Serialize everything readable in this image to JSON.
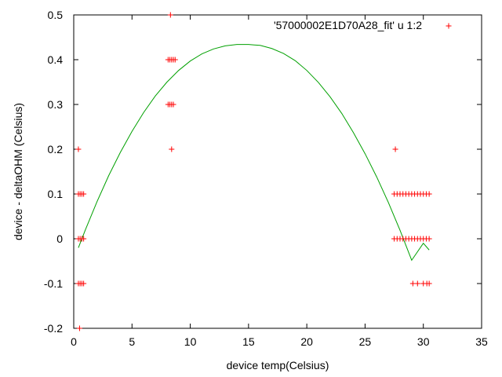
{
  "chart_data": {
    "type": "scatter",
    "title": "",
    "xlabel": "device temp(Celsius)",
    "ylabel": "device - deltaOHM (Celsius)",
    "xlim": [
      0,
      35
    ],
    "ylim": [
      -0.2,
      0.5
    ],
    "x_ticks": [
      0,
      5,
      10,
      15,
      20,
      25,
      30,
      35
    ],
    "y_ticks": [
      -0.2,
      -0.1,
      0,
      0.1,
      0.2,
      0.3,
      0.4,
      0.5
    ],
    "x_tick_labels": [
      "0",
      "5",
      "10",
      "15",
      "20",
      "25",
      "30",
      "35"
    ],
    "y_tick_labels": [
      "-0.2",
      "-0.1",
      "0",
      "0.1",
      "0.2",
      "0.3",
      "0.4",
      "0.5"
    ],
    "grid": false,
    "legend_position": "top-right",
    "series": [
      {
        "name": "'57000002E1D70A28_fit' u 1:2",
        "kind": "points",
        "marker": "plus",
        "color": "#ff0000",
        "points": [
          {
            "x": 0.4,
            "y": 0.2
          },
          {
            "x": 0.4,
            "y": 0.1
          },
          {
            "x": 0.55,
            "y": 0.1
          },
          {
            "x": 0.7,
            "y": 0.1
          },
          {
            "x": 0.85,
            "y": 0.1
          },
          {
            "x": 0.4,
            "y": 0.0
          },
          {
            "x": 0.55,
            "y": 0.0
          },
          {
            "x": 0.7,
            "y": 0.0
          },
          {
            "x": 0.85,
            "y": 0.0
          },
          {
            "x": 0.4,
            "y": -0.1
          },
          {
            "x": 0.55,
            "y": -0.1
          },
          {
            "x": 0.7,
            "y": -0.1
          },
          {
            "x": 0.85,
            "y": -0.1
          },
          {
            "x": 0.5,
            "y": -0.2
          },
          {
            "x": 8.3,
            "y": 0.5
          },
          {
            "x": 8.1,
            "y": 0.4
          },
          {
            "x": 8.25,
            "y": 0.4
          },
          {
            "x": 8.4,
            "y": 0.4
          },
          {
            "x": 8.55,
            "y": 0.4
          },
          {
            "x": 8.7,
            "y": 0.4
          },
          {
            "x": 8.1,
            "y": 0.3
          },
          {
            "x": 8.25,
            "y": 0.3
          },
          {
            "x": 8.4,
            "y": 0.3
          },
          {
            "x": 8.55,
            "y": 0.3
          },
          {
            "x": 8.4,
            "y": 0.2
          },
          {
            "x": 27.6,
            "y": 0.2
          },
          {
            "x": 27.5,
            "y": 0.1
          },
          {
            "x": 27.75,
            "y": 0.1
          },
          {
            "x": 28.0,
            "y": 0.1
          },
          {
            "x": 28.25,
            "y": 0.1
          },
          {
            "x": 28.5,
            "y": 0.1
          },
          {
            "x": 28.75,
            "y": 0.1
          },
          {
            "x": 29.0,
            "y": 0.1
          },
          {
            "x": 29.25,
            "y": 0.1
          },
          {
            "x": 29.5,
            "y": 0.1
          },
          {
            "x": 29.75,
            "y": 0.1
          },
          {
            "x": 30.0,
            "y": 0.1
          },
          {
            "x": 30.25,
            "y": 0.1
          },
          {
            "x": 30.5,
            "y": 0.1
          },
          {
            "x": 27.5,
            "y": 0.0
          },
          {
            "x": 27.75,
            "y": 0.0
          },
          {
            "x": 28.0,
            "y": 0.0
          },
          {
            "x": 28.25,
            "y": 0.0
          },
          {
            "x": 28.5,
            "y": 0.0
          },
          {
            "x": 28.75,
            "y": 0.0
          },
          {
            "x": 29.0,
            "y": 0.0
          },
          {
            "x": 29.25,
            "y": 0.0
          },
          {
            "x": 29.5,
            "y": 0.0
          },
          {
            "x": 29.75,
            "y": 0.0
          },
          {
            "x": 30.0,
            "y": 0.0
          },
          {
            "x": 30.25,
            "y": 0.0
          },
          {
            "x": 30.5,
            "y": 0.0
          },
          {
            "x": 29.1,
            "y": -0.1
          },
          {
            "x": 29.5,
            "y": -0.1
          },
          {
            "x": 30.0,
            "y": -0.1
          },
          {
            "x": 30.3,
            "y": -0.1
          },
          {
            "x": 30.5,
            "y": -0.1
          }
        ]
      },
      {
        "kind": "line",
        "color": "#00a000",
        "points": [
          {
            "x": 0.4,
            "y": -0.02
          },
          {
            "x": 1.0,
            "y": 0.02
          },
          {
            "x": 2.0,
            "y": 0.083
          },
          {
            "x": 3.0,
            "y": 0.141
          },
          {
            "x": 4.0,
            "y": 0.193
          },
          {
            "x": 5.0,
            "y": 0.24
          },
          {
            "x": 6.0,
            "y": 0.282
          },
          {
            "x": 7.0,
            "y": 0.319
          },
          {
            "x": 8.0,
            "y": 0.35
          },
          {
            "x": 9.0,
            "y": 0.376
          },
          {
            "x": 10.0,
            "y": 0.397
          },
          {
            "x": 11.0,
            "y": 0.413
          },
          {
            "x": 12.0,
            "y": 0.424
          },
          {
            "x": 13.0,
            "y": 0.431
          },
          {
            "x": 14.0,
            "y": 0.434
          },
          {
            "x": 15.0,
            "y": 0.434
          },
          {
            "x": 15.5,
            "y": 0.433
          },
          {
            "x": 16.0,
            "y": 0.432
          },
          {
            "x": 17.0,
            "y": 0.425
          },
          {
            "x": 18.0,
            "y": 0.414
          },
          {
            "x": 19.0,
            "y": 0.398
          },
          {
            "x": 20.0,
            "y": 0.376
          },
          {
            "x": 21.0,
            "y": 0.349
          },
          {
            "x": 22.0,
            "y": 0.317
          },
          {
            "x": 23.0,
            "y": 0.28
          },
          {
            "x": 24.0,
            "y": 0.237
          },
          {
            "x": 25.0,
            "y": 0.19
          },
          {
            "x": 26.0,
            "y": 0.138
          },
          {
            "x": 27.0,
            "y": 0.081
          },
          {
            "x": 28.0,
            "y": 0.019
          },
          {
            "x": 29.0,
            "y": -0.048
          },
          {
            "x": 30.0,
            "y": -0.01
          },
          {
            "x": 30.5,
            "y": -0.025
          }
        ]
      }
    ]
  }
}
